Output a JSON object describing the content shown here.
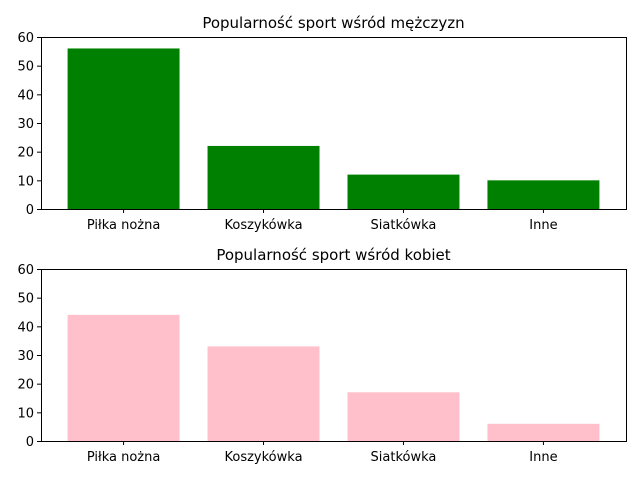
{
  "chart_data": [
    {
      "type": "bar",
      "title": "Popularność sport wśród mężczyzn",
      "categories": [
        "Piłka nożna",
        "Koszykówka",
        "Siatkówka",
        "Inne"
      ],
      "values": [
        56,
        22,
        12,
        10
      ],
      "color": "#008000",
      "xlabel": "",
      "ylabel": "",
      "ylim": [
        0,
        60
      ],
      "yticks": [
        0,
        10,
        20,
        30,
        40,
        50,
        60
      ],
      "grid": false
    },
    {
      "type": "bar",
      "title": "Popularność sport wśród kobiet",
      "categories": [
        "Piłka nożna",
        "Koszykówka",
        "Siatkówka",
        "Inne"
      ],
      "values": [
        44,
        33,
        17,
        6
      ],
      "color": "#ffc0cb",
      "xlabel": "",
      "ylabel": "",
      "ylim": [
        0,
        60
      ],
      "yticks": [
        0,
        10,
        20,
        30,
        40,
        50,
        60
      ],
      "grid": false
    }
  ]
}
